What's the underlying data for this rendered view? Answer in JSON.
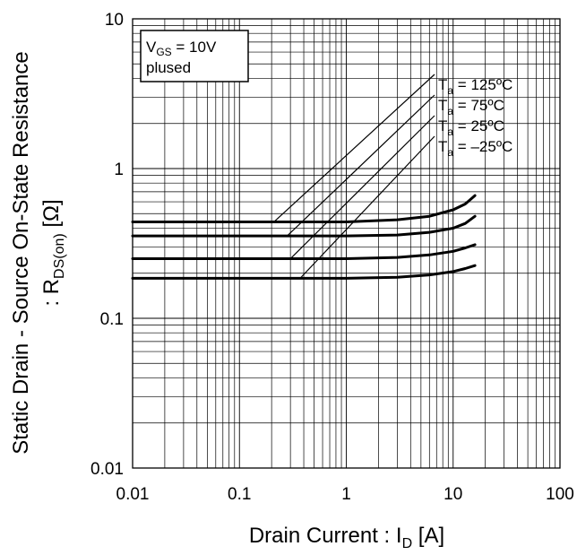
{
  "chart_data": {
    "type": "line",
    "x_scale": "log",
    "y_scale": "log",
    "xlim": [
      0.01,
      100
    ],
    "ylim": [
      0.01,
      10
    ],
    "grid": true,
    "x_ticks": [
      {
        "value": 0.01,
        "label": "0.01"
      },
      {
        "value": 0.1,
        "label": "0.1"
      },
      {
        "value": 1,
        "label": "1"
      },
      {
        "value": 10,
        "label": "10"
      },
      {
        "value": 100,
        "label": "100"
      }
    ],
    "y_ticks": [
      {
        "value": 0.01,
        "label": "0.01"
      },
      {
        "value": 0.1,
        "label": "0.1"
      },
      {
        "value": 1,
        "label": "1"
      },
      {
        "value": 10,
        "label": "10"
      }
    ],
    "xlabel": {
      "main": "Drain Current : I",
      "sub": "D",
      "tail": " [A]"
    },
    "ylabel": {
      "line1": "Static Drain - Source On-State Resistance",
      "line2_main": ": R",
      "line2_sub": "DS(on)",
      "line2_tail": " [Ω]"
    },
    "condition": {
      "v": "V",
      "v_sub": "GS",
      "v_tail": " = 10V",
      "line2": "plused"
    },
    "series": [
      {
        "name": "Ta = 125ºC",
        "label_main": "T",
        "label_sub": "a",
        "label_tail": " = 125ºC",
        "x": [
          0.01,
          0.05,
          0.1,
          0.5,
          1,
          3,
          6,
          10,
          13,
          16
        ],
        "y": [
          0.44,
          0.44,
          0.44,
          0.44,
          0.44,
          0.455,
          0.48,
          0.53,
          0.58,
          0.66
        ],
        "leader_from": [
          0.21,
          0.44
        ]
      },
      {
        "name": "Ta = 75ºC",
        "label_main": "T",
        "label_sub": "a",
        "label_tail": " = 75ºC",
        "x": [
          0.01,
          0.05,
          0.1,
          0.5,
          1,
          3,
          6,
          10,
          13,
          16
        ],
        "y": [
          0.355,
          0.355,
          0.355,
          0.355,
          0.355,
          0.36,
          0.375,
          0.4,
          0.43,
          0.48
        ],
        "leader_from": [
          0.28,
          0.355
        ]
      },
      {
        "name": "Ta = 25ºC",
        "label_main": "T",
        "label_sub": "a",
        "label_tail": " = 25ºC",
        "x": [
          0.01,
          0.05,
          0.1,
          0.5,
          1,
          3,
          6,
          10,
          13,
          16
        ],
        "y": [
          0.25,
          0.25,
          0.25,
          0.25,
          0.25,
          0.255,
          0.265,
          0.28,
          0.295,
          0.31
        ],
        "leader_from": [
          0.3,
          0.25
        ]
      },
      {
        "name": "Ta = -25ºC",
        "label_main": "T",
        "label_sub": "a",
        "label_tail": " = –25ºC",
        "x": [
          0.01,
          0.05,
          0.1,
          0.5,
          1,
          3,
          6,
          10,
          13,
          16
        ],
        "y": [
          0.185,
          0.185,
          0.185,
          0.185,
          0.185,
          0.188,
          0.195,
          0.205,
          0.215,
          0.225
        ],
        "leader_from": [
          0.37,
          0.185
        ]
      }
    ]
  }
}
